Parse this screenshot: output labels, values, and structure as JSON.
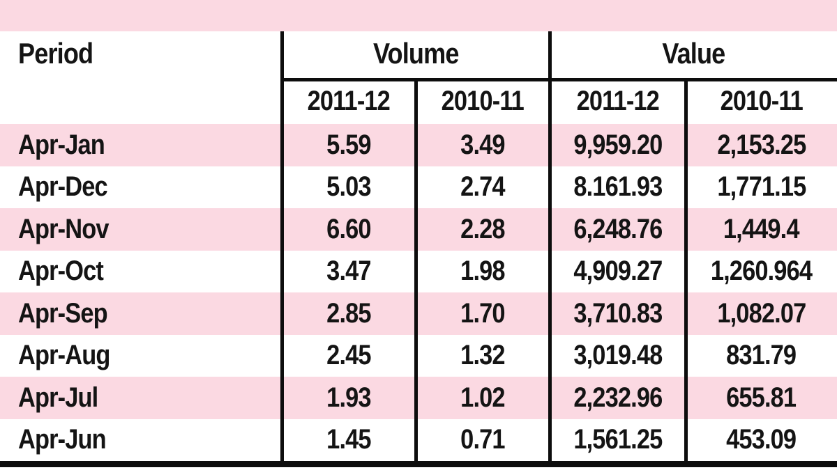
{
  "table": {
    "header": {
      "period": "Period",
      "volume": "Volume",
      "value": "Value",
      "subcolumns": [
        "2011-12",
        "2010-11",
        "2011-12",
        "2010-11"
      ]
    },
    "rows": [
      {
        "period": "Apr-Jan",
        "vol_2011_12": "5.59",
        "vol_2010_11": "3.49",
        "val_2011_12": "9,959.20",
        "val_2010_11": "2,153.25"
      },
      {
        "period": "Apr-Dec",
        "vol_2011_12": "5.03",
        "vol_2010_11": "2.74",
        "val_2011_12": "8.161.93",
        "val_2010_11": "1,771.15"
      },
      {
        "period": "Apr-Nov",
        "vol_2011_12": "6.60",
        "vol_2010_11": "2.28",
        "val_2011_12": "6,248.76",
        "val_2010_11": "1,449.4"
      },
      {
        "period": "Apr-Oct",
        "vol_2011_12": "3.47",
        "vol_2010_11": "1.98",
        "val_2011_12": "4,909.27",
        "val_2010_11": "1,260.964"
      },
      {
        "period": "Apr-Sep",
        "vol_2011_12": "2.85",
        "vol_2010_11": "1.70",
        "val_2011_12": "3,710.83",
        "val_2010_11": "1,082.07"
      },
      {
        "period": "Apr-Aug",
        "vol_2011_12": "2.45",
        "vol_2010_11": "1.32",
        "val_2011_12": "3,019.48",
        "val_2010_11": "831.79"
      },
      {
        "period": "Apr-Jul",
        "vol_2011_12": "1.93",
        "vol_2010_11": "1.02",
        "val_2011_12": "2,232.96",
        "val_2010_11": "655.81"
      },
      {
        "period": "Apr-Jun",
        "vol_2011_12": "1.45",
        "vol_2010_11": "0.71",
        "val_2011_12": "1,561.25",
        "val_2010_11": "453.09"
      }
    ]
  },
  "colors": {
    "stripe_pink": "#fbd9e2",
    "line_black": "#0d0d0d",
    "text_black": "#141414",
    "background": "#ffffff"
  },
  "chart_data": {
    "type": "table",
    "title": "",
    "column_groups": [
      {
        "label": "Period",
        "span": 1
      },
      {
        "label": "Volume",
        "span": 2,
        "subcolumns": [
          "2011-12",
          "2010-11"
        ]
      },
      {
        "label": "Value",
        "span": 2,
        "subcolumns": [
          "2011-12",
          "2010-11"
        ]
      }
    ],
    "columns": [
      "Period",
      "Volume 2011-12",
      "Volume 2010-11",
      "Value 2011-12",
      "Value 2010-11"
    ],
    "rows": [
      [
        "Apr-Jan",
        5.59,
        3.49,
        9959.2,
        2153.25
      ],
      [
        "Apr-Dec",
        5.03,
        2.74,
        8161.93,
        1771.15
      ],
      [
        "Apr-Nov",
        6.6,
        2.28,
        6248.76,
        1449.4
      ],
      [
        "Apr-Oct",
        3.47,
        1.98,
        4909.27,
        1260.964
      ],
      [
        "Apr-Sep",
        2.85,
        1.7,
        3710.83,
        1082.07
      ],
      [
        "Apr-Aug",
        2.45,
        1.32,
        3019.48,
        831.79
      ],
      [
        "Apr-Jul",
        1.93,
        1.02,
        2232.96,
        655.81
      ],
      [
        "Apr-Jun",
        1.45,
        0.71,
        1561.25,
        453.09
      ]
    ],
    "layout": {
      "row_striping": "alternating pink/white, first data row pink",
      "header_rows": 2,
      "grid": "partial rules: column dividers, header underline, thick bottom rule"
    }
  }
}
